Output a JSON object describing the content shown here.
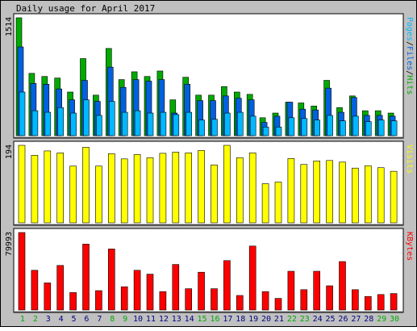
{
  "chart_data": {
    "type": "bar",
    "title": "Daily usage for April 2017",
    "days": [
      "1",
      "2",
      "3",
      "4",
      "5",
      "6",
      "7",
      "8",
      "9",
      "10",
      "11",
      "12",
      "13",
      "14",
      "15",
      "16",
      "17",
      "18",
      "19",
      "20",
      "21",
      "22",
      "23",
      "24",
      "25",
      "26",
      "27",
      "28",
      "29",
      "30"
    ],
    "weekend_days": [
      "1",
      "2",
      "8",
      "9",
      "15",
      "16",
      "22",
      "23",
      "29",
      "30"
    ],
    "colors": {
      "background": "#c0c0c0",
      "panel": "#ffffff",
      "hits": "#00aa00",
      "files": "#0060e0",
      "pages": "#00b8ff",
      "visits": "#ffff00",
      "kbytes": "#ff0000",
      "weekday_label": "#000080",
      "weekend_label": "#00aa00"
    },
    "panels": [
      {
        "label_parts": [
          {
            "text": "Pages",
            "color": "#00b8ff"
          },
          {
            "text": "/",
            "color": "#000000"
          },
          {
            "text": "Files",
            "color": "#0060e0"
          },
          {
            "text": "/",
            "color": "#000000"
          },
          {
            "text": "Hits",
            "color": "#00aa00"
          }
        ],
        "max_label": "1514",
        "max": 1514,
        "series": [
          {
            "name": "Hits",
            "values": [
              1514,
              800,
              760,
              740,
              560,
              990,
              520,
              1120,
              720,
              820,
              760,
              830,
              460,
              750,
              520,
              520,
              630,
              560,
              530,
              230,
              290,
              430,
              420,
              380,
              710,
              360,
              510,
              320,
              320,
              290
            ]
          },
          {
            "name": "Files",
            "values": [
              1140,
              670,
              660,
              600,
              460,
              710,
              440,
              880,
              620,
              720,
              700,
              720,
              290,
              660,
              450,
              450,
              510,
              480,
              460,
              170,
              250,
              430,
              340,
              330,
              610,
              300,
              490,
              260,
              260,
              250
            ]
          },
          {
            "name": "Pages",
            "values": [
              560,
              320,
              300,
              360,
              290,
              460,
              260,
              440,
              300,
              320,
              290,
              300,
              270,
              300,
              200,
              210,
              290,
              300,
              250,
              110,
              110,
              230,
              220,
              200,
              260,
              190,
              250,
              180,
              200,
              190
            ]
          }
        ]
      },
      {
        "label_parts": [
          {
            "text": "Visits",
            "color": "#ffff00"
          }
        ],
        "max_label": "194",
        "max": 194,
        "series": [
          {
            "name": "Visits",
            "values": [
              194,
              169,
              180,
              175,
              142,
              189,
              142,
              173,
              160,
              171,
              163,
              174,
              177,
              175,
              181,
              145,
              194,
              163,
              175,
              98,
              102,
              161,
              146,
              155,
              156,
              152,
              137,
              143,
              138,
              129
            ]
          }
        ]
      },
      {
        "label_parts": [
          {
            "text": "KBytes",
            "color": "#ff0000"
          }
        ],
        "max_label": "79993",
        "max": 79993,
        "series": [
          {
            "name": "KBytes",
            "values": [
              79993,
              41000,
              28000,
              46000,
              18000,
              68000,
              20000,
              63000,
              24000,
              41000,
              37000,
              19000,
              47000,
              22000,
              39000,
              22000,
              51000,
              15000,
              66000,
              19000,
              12000,
              40000,
              21000,
              40000,
              25000,
              50000,
              21000,
              14000,
              16000,
              17000
            ]
          }
        ]
      }
    ]
  }
}
